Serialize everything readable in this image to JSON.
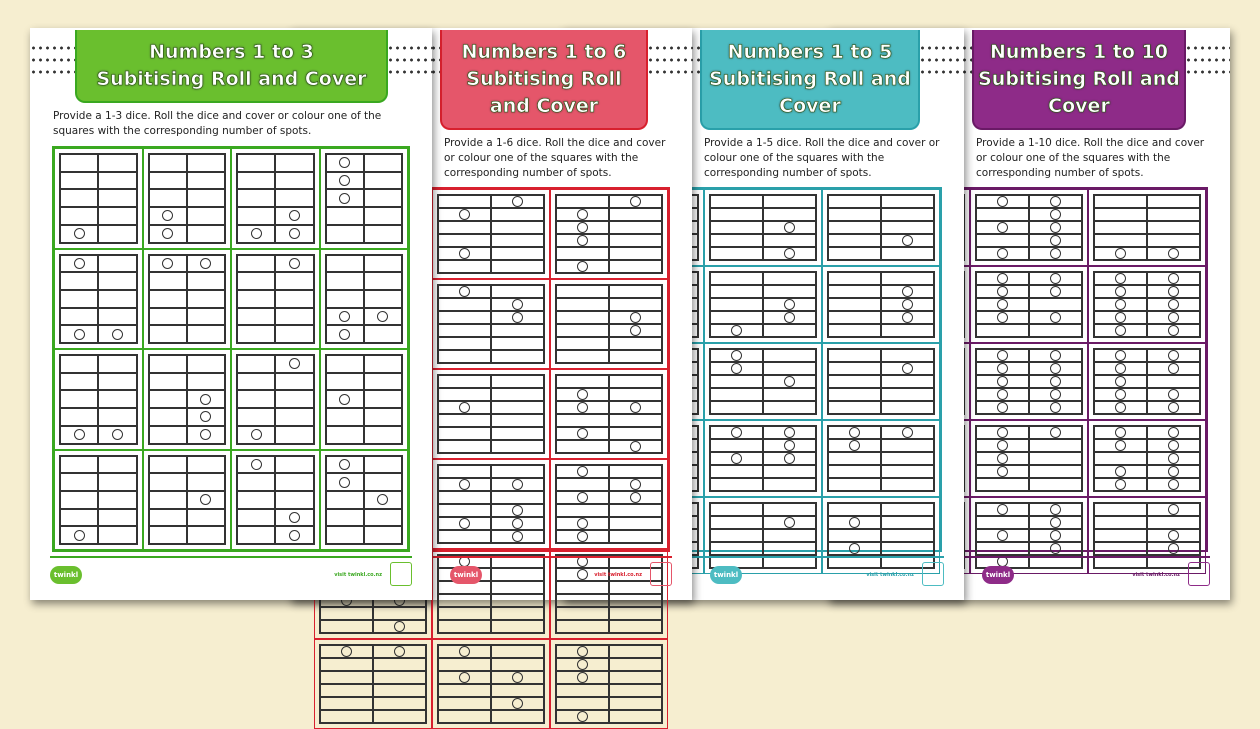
{
  "background": "#f6eed0",
  "pages": [
    {
      "title_line1": "Numbers 1 to 3",
      "title_line2": "Subitising Roll and Cover",
      "instructions": "Provide a 1-3 dice. Roll the dice and cover or colour one of the squares with the corresponding number of spots.",
      "color": "#6abf2e",
      "border": "#3aa820",
      "cols": 4,
      "rows": 4,
      "dice_rows": 5,
      "max": 3,
      "cells": [
        [
          [
            0,
            4
          ]
        ],
        [
          [
            0,
            3
          ],
          [
            0,
            4
          ]
        ],
        [
          [
            1,
            3
          ],
          [
            0,
            4
          ],
          [
            1,
            4
          ]
        ],
        [
          [
            0,
            0
          ],
          [
            0,
            1
          ],
          [
            0,
            2
          ]
        ],
        [
          [
            0,
            0
          ],
          [
            0,
            4
          ],
          [
            1,
            4
          ]
        ],
        [
          [
            0,
            0
          ],
          [
            1,
            0
          ]
        ],
        [
          [
            1,
            0
          ]
        ],
        [
          [
            0,
            3
          ],
          [
            1,
            3
          ],
          [
            0,
            4
          ]
        ],
        [
          [
            0,
            4
          ],
          [
            1,
            4
          ]
        ],
        [
          [
            1,
            2
          ],
          [
            1,
            3
          ],
          [
            1,
            4
          ]
        ],
        [
          [
            1,
            0
          ],
          [
            0,
            4
          ]
        ],
        [
          [
            0,
            2
          ]
        ],
        [
          [
            0,
            4
          ]
        ],
        [
          [
            1,
            2
          ]
        ],
        [
          [
            0,
            0
          ],
          [
            1,
            3
          ],
          [
            1,
            4
          ]
        ],
        [
          [
            0,
            0
          ],
          [
            0,
            1
          ],
          [
            1,
            2
          ]
        ]
      ],
      "logo": "twinkl",
      "url": "visit twinkl.co.nz"
    },
    {
      "title_line1": "Numbers 1 to 6",
      "title_line2": "Subitising Roll and Cover",
      "instructions": "Provide a 1-6 dice. Roll the dice and cover or colour one of the squares with the corresponding number of spots.",
      "color": "#e5566a",
      "border": "#d8202e",
      "cols": 3,
      "rows": 6,
      "dice_rows": 6,
      "max": 6,
      "logo": "twinkl",
      "url": "visit twinkl.co.nz"
    },
    {
      "title_line1": "Numbers 1 to 5",
      "title_line2": "Subitising Roll and Cover",
      "instructions": "Provide a 1-5 dice. Roll the dice and cover or colour one of the squares with the corresponding number of spots.",
      "color": "#4dbcc2",
      "border": "#2aa0aa",
      "cols": 3,
      "rows": 5,
      "dice_rows": 5,
      "max": 5,
      "logo": "twinkl",
      "url": "visit twinkl.co.nz"
    },
    {
      "title_line1": "Numbers 1 to 10",
      "title_line2": "Subitising Roll and Cover",
      "instructions": "Provide a 1-10 dice. Roll the dice and cover or colour one of the squares with the corresponding number of spots.",
      "color": "#8e2b88",
      "border": "#6a1a66",
      "cols": 3,
      "rows": 5,
      "dice_rows": 5,
      "max": 10,
      "logo": "twinkl",
      "url": "visit twinkl.co.nz"
    }
  ]
}
